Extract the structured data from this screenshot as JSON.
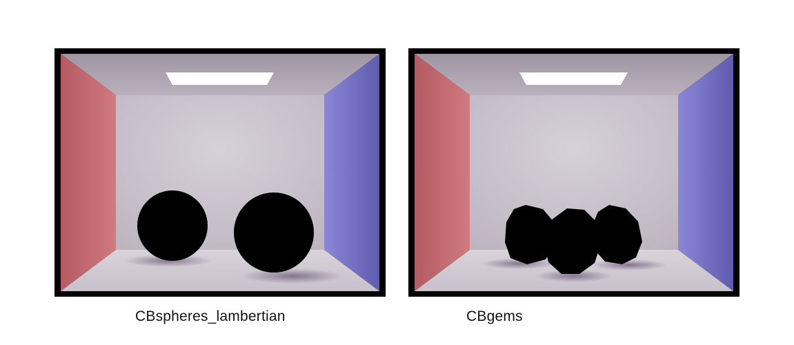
{
  "renders": [
    {
      "caption": "CBspheres_lambertian",
      "scene": "spheres"
    },
    {
      "caption": "CBgems",
      "scene": "gems"
    }
  ],
  "colors": {
    "frame": "#000000",
    "left_wall": "#c0666c",
    "right_wall": "#7470c4",
    "back_wall": "#cdc6cf",
    "ceiling": "#a49ca6",
    "floor": "#d6d0d6",
    "light": "#ffffff",
    "objects": "#000000"
  }
}
